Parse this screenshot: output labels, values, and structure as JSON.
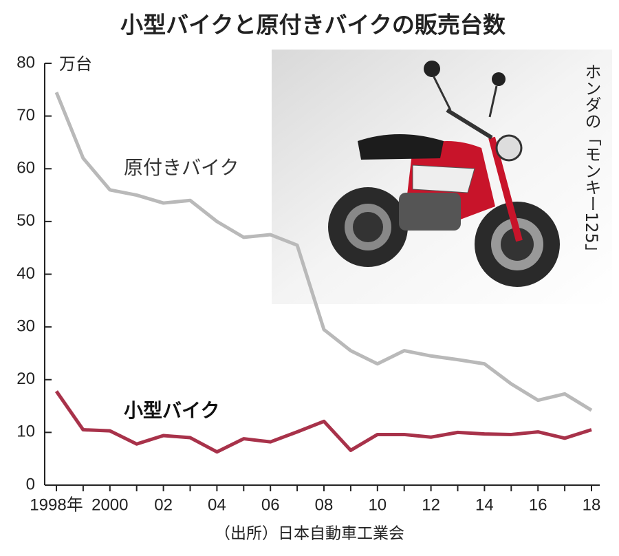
{
  "chart_data": {
    "type": "line",
    "title": "小型バイクと原付きバイクの販売台数",
    "y_unit": "万台",
    "source": "（出所）日本自動車工業会",
    "image_caption": "ホンダの「モンキー125」",
    "categories": [
      "1998年",
      null,
      "2000",
      null,
      "02",
      null,
      "04",
      null,
      "06",
      null,
      "08",
      null,
      "10",
      null,
      "12",
      null,
      "14",
      null,
      "16",
      null,
      "18"
    ],
    "series": [
      {
        "name": "原付きバイク",
        "color": "#b9b9b9",
        "values": [
          74.5,
          62,
          56,
          55,
          53.5,
          54,
          50,
          47,
          47.5,
          45.5,
          29.5,
          25.5,
          23,
          25.5,
          24.5,
          23.8,
          23,
          19.2,
          16.1,
          17.3,
          14.2
        ]
      },
      {
        "name": "小型バイク",
        "color": "#a8324a",
        "values": [
          17.8,
          10.5,
          10.3,
          7.8,
          9.4,
          9.0,
          6.3,
          8.8,
          8.2,
          10.1,
          12.1,
          6.6,
          9.6,
          9.6,
          9.1,
          10.0,
          9.7,
          9.6,
          10.1,
          8.9,
          10.5
        ]
      }
    ],
    "ylim": [
      0,
      80
    ],
    "yticks": [
      0,
      10,
      20,
      30,
      40,
      50,
      60,
      70,
      80
    ]
  }
}
